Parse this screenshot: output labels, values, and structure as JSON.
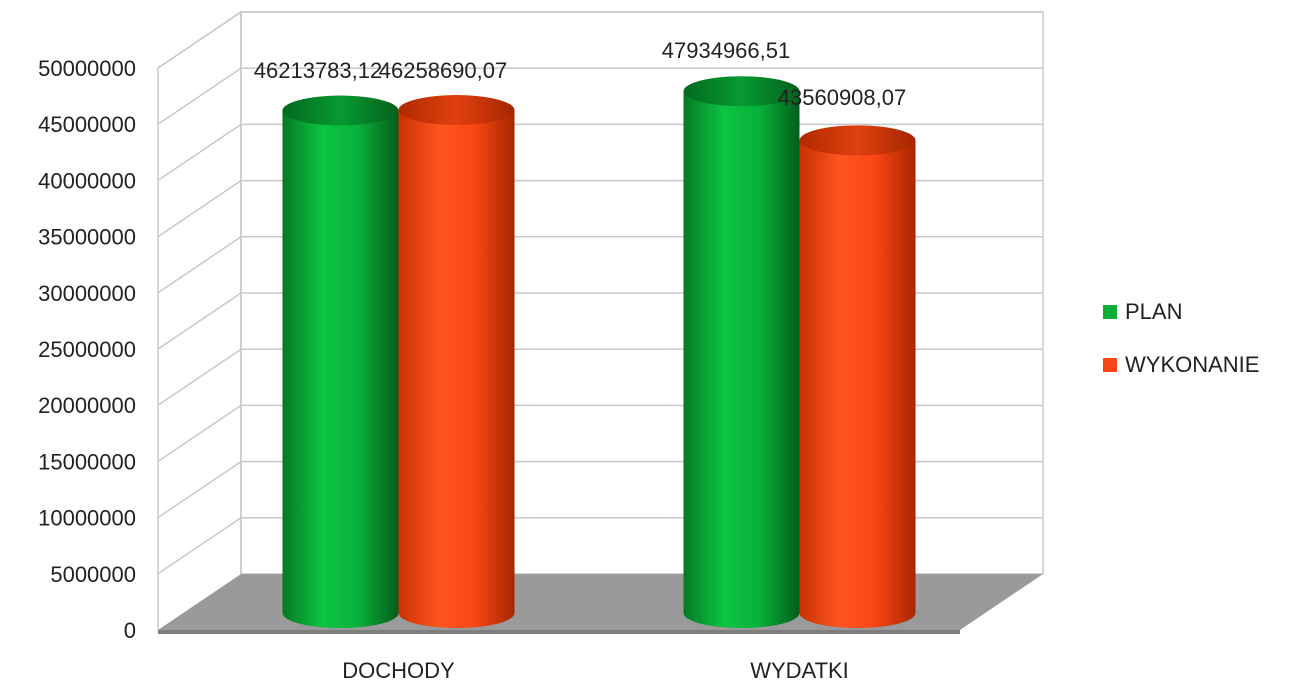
{
  "chart_data": {
    "type": "bar",
    "style": "3d-cylinder",
    "title": "",
    "xlabel": "",
    "ylabel": "",
    "categories": [
      "DOCHODY",
      "WYDATKI"
    ],
    "series": [
      {
        "name": "PLAN",
        "color": "#09AE37",
        "values": [
          46213783.12,
          47934966.51
        ],
        "labels": [
          "46213783,12",
          "47934966,51"
        ]
      },
      {
        "name": "WYKONANIE",
        "color": "#FA4614",
        "values": [
          46258690.07,
          43560908.07
        ],
        "labels": [
          "46258690,07",
          "43560908,07"
        ]
      }
    ],
    "ylim": [
      0,
      50000000
    ],
    "yticks": [
      "0",
      "5000000",
      "10000000",
      "15000000",
      "20000000",
      "25000000",
      "30000000",
      "35000000",
      "40000000",
      "45000000",
      "50000000"
    ],
    "grid": true,
    "legend_position": "right"
  }
}
